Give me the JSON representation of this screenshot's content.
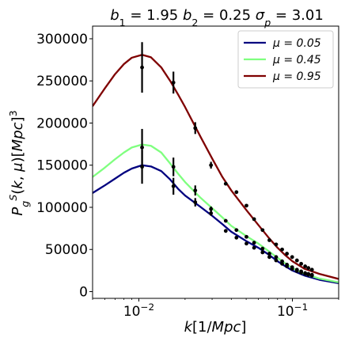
{
  "chart_data": {
    "type": "line",
    "title": {
      "parts": [
        {
          "text": "b",
          "style": "italic"
        },
        {
          "text": "1",
          "style": "sub"
        },
        {
          "text": " = 1.95 ",
          "style": "normal"
        },
        {
          "text": "b",
          "style": "italic"
        },
        {
          "text": "2",
          "style": "sub"
        },
        {
          "text": " = 0.25 ",
          "style": "normal"
        },
        {
          "text": "σ",
          "style": "italic"
        },
        {
          "text": "p",
          "style": "sub-italic"
        },
        {
          "text": " = 3.01",
          "style": "normal"
        }
      ]
    },
    "xlabel": {
      "parts": [
        {
          "text": "k",
          "style": "italic"
        },
        {
          "text": "[1/",
          "style": "normal"
        },
        {
          "text": "Mpc",
          "style": "italic"
        },
        {
          "text": "]",
          "style": "normal"
        }
      ]
    },
    "ylabel": {
      "parts": [
        {
          "text": "P",
          "style": "italic"
        },
        {
          "text": "g",
          "style": "sub-italic"
        },
        {
          "text": "S",
          "style": "sup-italic"
        },
        {
          "text": "(",
          "style": "normal"
        },
        {
          "text": "k",
          "style": "italic"
        },
        {
          "text": ", ",
          "style": "normal"
        },
        {
          "text": "μ",
          "style": "italic"
        },
        {
          "text": ")[",
          "style": "normal"
        },
        {
          "text": "Mpc",
          "style": "italic"
        },
        {
          "text": "]",
          "style": "normal"
        },
        {
          "text": "3",
          "style": "sup"
        }
      ]
    },
    "xscale": "log",
    "xlim": [
      0.005,
      0.2
    ],
    "ylim": [
      -8000,
      315000
    ],
    "grid": false,
    "legend_position": "top-right",
    "x_ticks": [
      {
        "value": 0.01,
        "base": "10",
        "exp": "−2"
      },
      {
        "value": 0.1,
        "base": "10",
        "exp": "−1"
      }
    ],
    "y_ticks": [
      {
        "value": 0,
        "label": "0"
      },
      {
        "value": 50000,
        "label": "50000"
      },
      {
        "value": 100000,
        "label": "100000"
      },
      {
        "value": 150000,
        "label": "150000"
      },
      {
        "value": 200000,
        "label": "200000"
      },
      {
        "value": 250000,
        "label": "250000"
      },
      {
        "value": 300000,
        "label": "300000"
      }
    ],
    "series": [
      {
        "name": "μ = 0.05",
        "color": "#00007f",
        "curve": [
          [
            0.005,
            117000
          ],
          [
            0.006,
            126000
          ],
          [
            0.007,
            134000
          ],
          [
            0.008,
            141000
          ],
          [
            0.009,
            146000
          ],
          [
            0.0105,
            150000
          ],
          [
            0.012,
            148500
          ],
          [
            0.014,
            143000
          ],
          [
            0.016,
            133000
          ],
          [
            0.018,
            122000
          ],
          [
            0.02,
            114000
          ],
          [
            0.025,
            101000
          ],
          [
            0.03,
            90000
          ],
          [
            0.035,
            80000
          ],
          [
            0.04,
            71000
          ],
          [
            0.05,
            60000
          ],
          [
            0.06,
            52000
          ],
          [
            0.07,
            44000
          ],
          [
            0.08,
            36000
          ],
          [
            0.09,
            30000
          ],
          [
            0.1,
            25000
          ],
          [
            0.12,
            19000
          ],
          [
            0.15,
            14000
          ],
          [
            0.2,
            10000
          ]
        ],
        "points": [
          {
            "x": 0.0105,
            "y": 148000,
            "err": 20000
          },
          {
            "x": 0.0168,
            "y": 125000,
            "err": 10000
          },
          {
            "x": 0.0233,
            "y": 106000,
            "err": 5000
          },
          {
            "x": 0.0295,
            "y": 93000,
            "err": 3000
          },
          {
            "x": 0.0368,
            "y": 72000
          },
          {
            "x": 0.0432,
            "y": 64000
          },
          {
            "x": 0.0502,
            "y": 57000
          },
          {
            "x": 0.0563,
            "y": 52000
          },
          {
            "x": 0.0639,
            "y": 46500
          },
          {
            "x": 0.0708,
            "y": 41000
          },
          {
            "x": 0.0783,
            "y": 37000
          },
          {
            "x": 0.0857,
            "y": 33000
          },
          {
            "x": 0.0921,
            "y": 30000
          },
          {
            "x": 0.0996,
            "y": 27000
          },
          {
            "x": 0.107,
            "y": 24500
          },
          {
            "x": 0.114,
            "y": 22500
          },
          {
            "x": 0.121,
            "y": 21000
          },
          {
            "x": 0.127,
            "y": 20000
          },
          {
            "x": 0.134,
            "y": 19000
          }
        ]
      },
      {
        "name": "μ = 0.45",
        "color": "#7fff7f",
        "curve": [
          [
            0.005,
            136000
          ],
          [
            0.006,
            147000
          ],
          [
            0.007,
            157000
          ],
          [
            0.008,
            165000
          ],
          [
            0.009,
            171000
          ],
          [
            0.0105,
            174500
          ],
          [
            0.012,
            173000
          ],
          [
            0.014,
            165000
          ],
          [
            0.016,
            152000
          ],
          [
            0.018,
            140000
          ],
          [
            0.02,
            130000
          ],
          [
            0.025,
            112000
          ],
          [
            0.03,
            99000
          ],
          [
            0.035,
            88000
          ],
          [
            0.04,
            78000
          ],
          [
            0.05,
            66000
          ],
          [
            0.06,
            57000
          ],
          [
            0.07,
            48000
          ],
          [
            0.08,
            40000
          ],
          [
            0.09,
            33500
          ],
          [
            0.1,
            28000
          ],
          [
            0.12,
            21000
          ],
          [
            0.15,
            15500
          ],
          [
            0.2,
            11000
          ]
        ],
        "points": [
          {
            "x": 0.0105,
            "y": 171000,
            "err": 22000
          },
          {
            "x": 0.0168,
            "y": 148000,
            "err": 11000
          },
          {
            "x": 0.0233,
            "y": 120000,
            "err": 6000
          },
          {
            "x": 0.0295,
            "y": 98000,
            "err": 3000
          },
          {
            "x": 0.0368,
            "y": 84000
          },
          {
            "x": 0.0432,
            "y": 73000
          },
          {
            "x": 0.0502,
            "y": 65000
          },
          {
            "x": 0.0563,
            "y": 58000
          },
          {
            "x": 0.0639,
            "y": 51000
          },
          {
            "x": 0.0708,
            "y": 45000
          },
          {
            "x": 0.0783,
            "y": 41000
          },
          {
            "x": 0.0857,
            "y": 36000
          },
          {
            "x": 0.0921,
            "y": 32000
          },
          {
            "x": 0.0996,
            "y": 29000
          },
          {
            "x": 0.107,
            "y": 26000
          },
          {
            "x": 0.114,
            "y": 24000
          },
          {
            "x": 0.121,
            "y": 22000
          },
          {
            "x": 0.127,
            "y": 21000
          },
          {
            "x": 0.134,
            "y": 20000
          }
        ]
      },
      {
        "name": "μ = 0.95",
        "color": "#7f0000",
        "curve": [
          [
            0.005,
            220000
          ],
          [
            0.006,
            241000
          ],
          [
            0.007,
            258000
          ],
          [
            0.008,
            270000
          ],
          [
            0.009,
            277500
          ],
          [
            0.0105,
            281000
          ],
          [
            0.012,
            278000
          ],
          [
            0.014,
            266000
          ],
          [
            0.016,
            250000
          ],
          [
            0.018,
            234000
          ],
          [
            0.02,
            219000
          ],
          [
            0.025,
            185000
          ],
          [
            0.03,
            158000
          ],
          [
            0.035,
            136000
          ],
          [
            0.04,
            120000
          ],
          [
            0.05,
            97000
          ],
          [
            0.06,
            79000
          ],
          [
            0.07,
            64000
          ],
          [
            0.08,
            52000
          ],
          [
            0.09,
            43000
          ],
          [
            0.1,
            36000
          ],
          [
            0.12,
            27000
          ],
          [
            0.15,
            21000
          ],
          [
            0.2,
            15000
          ]
        ],
        "points": [
          {
            "x": 0.0105,
            "y": 266000,
            "err": 30000
          },
          {
            "x": 0.0168,
            "y": 248000,
            "err": 13000
          },
          {
            "x": 0.0233,
            "y": 194000,
            "err": 7000
          },
          {
            "x": 0.0295,
            "y": 150000,
            "err": 4000
          },
          {
            "x": 0.0368,
            "y": 128000
          },
          {
            "x": 0.0432,
            "y": 118000
          },
          {
            "x": 0.0502,
            "y": 102000
          },
          {
            "x": 0.0563,
            "y": 86000
          },
          {
            "x": 0.0639,
            "y": 73000
          },
          {
            "x": 0.0708,
            "y": 61000
          },
          {
            "x": 0.0783,
            "y": 56000
          },
          {
            "x": 0.0857,
            "y": 50000
          },
          {
            "x": 0.0921,
            "y": 45000
          },
          {
            "x": 0.0996,
            "y": 41000
          },
          {
            "x": 0.107,
            "y": 37000
          },
          {
            "x": 0.114,
            "y": 33000
          },
          {
            "x": 0.121,
            "y": 30000
          },
          {
            "x": 0.127,
            "y": 28000
          },
          {
            "x": 0.134,
            "y": 26000
          }
        ]
      }
    ]
  }
}
